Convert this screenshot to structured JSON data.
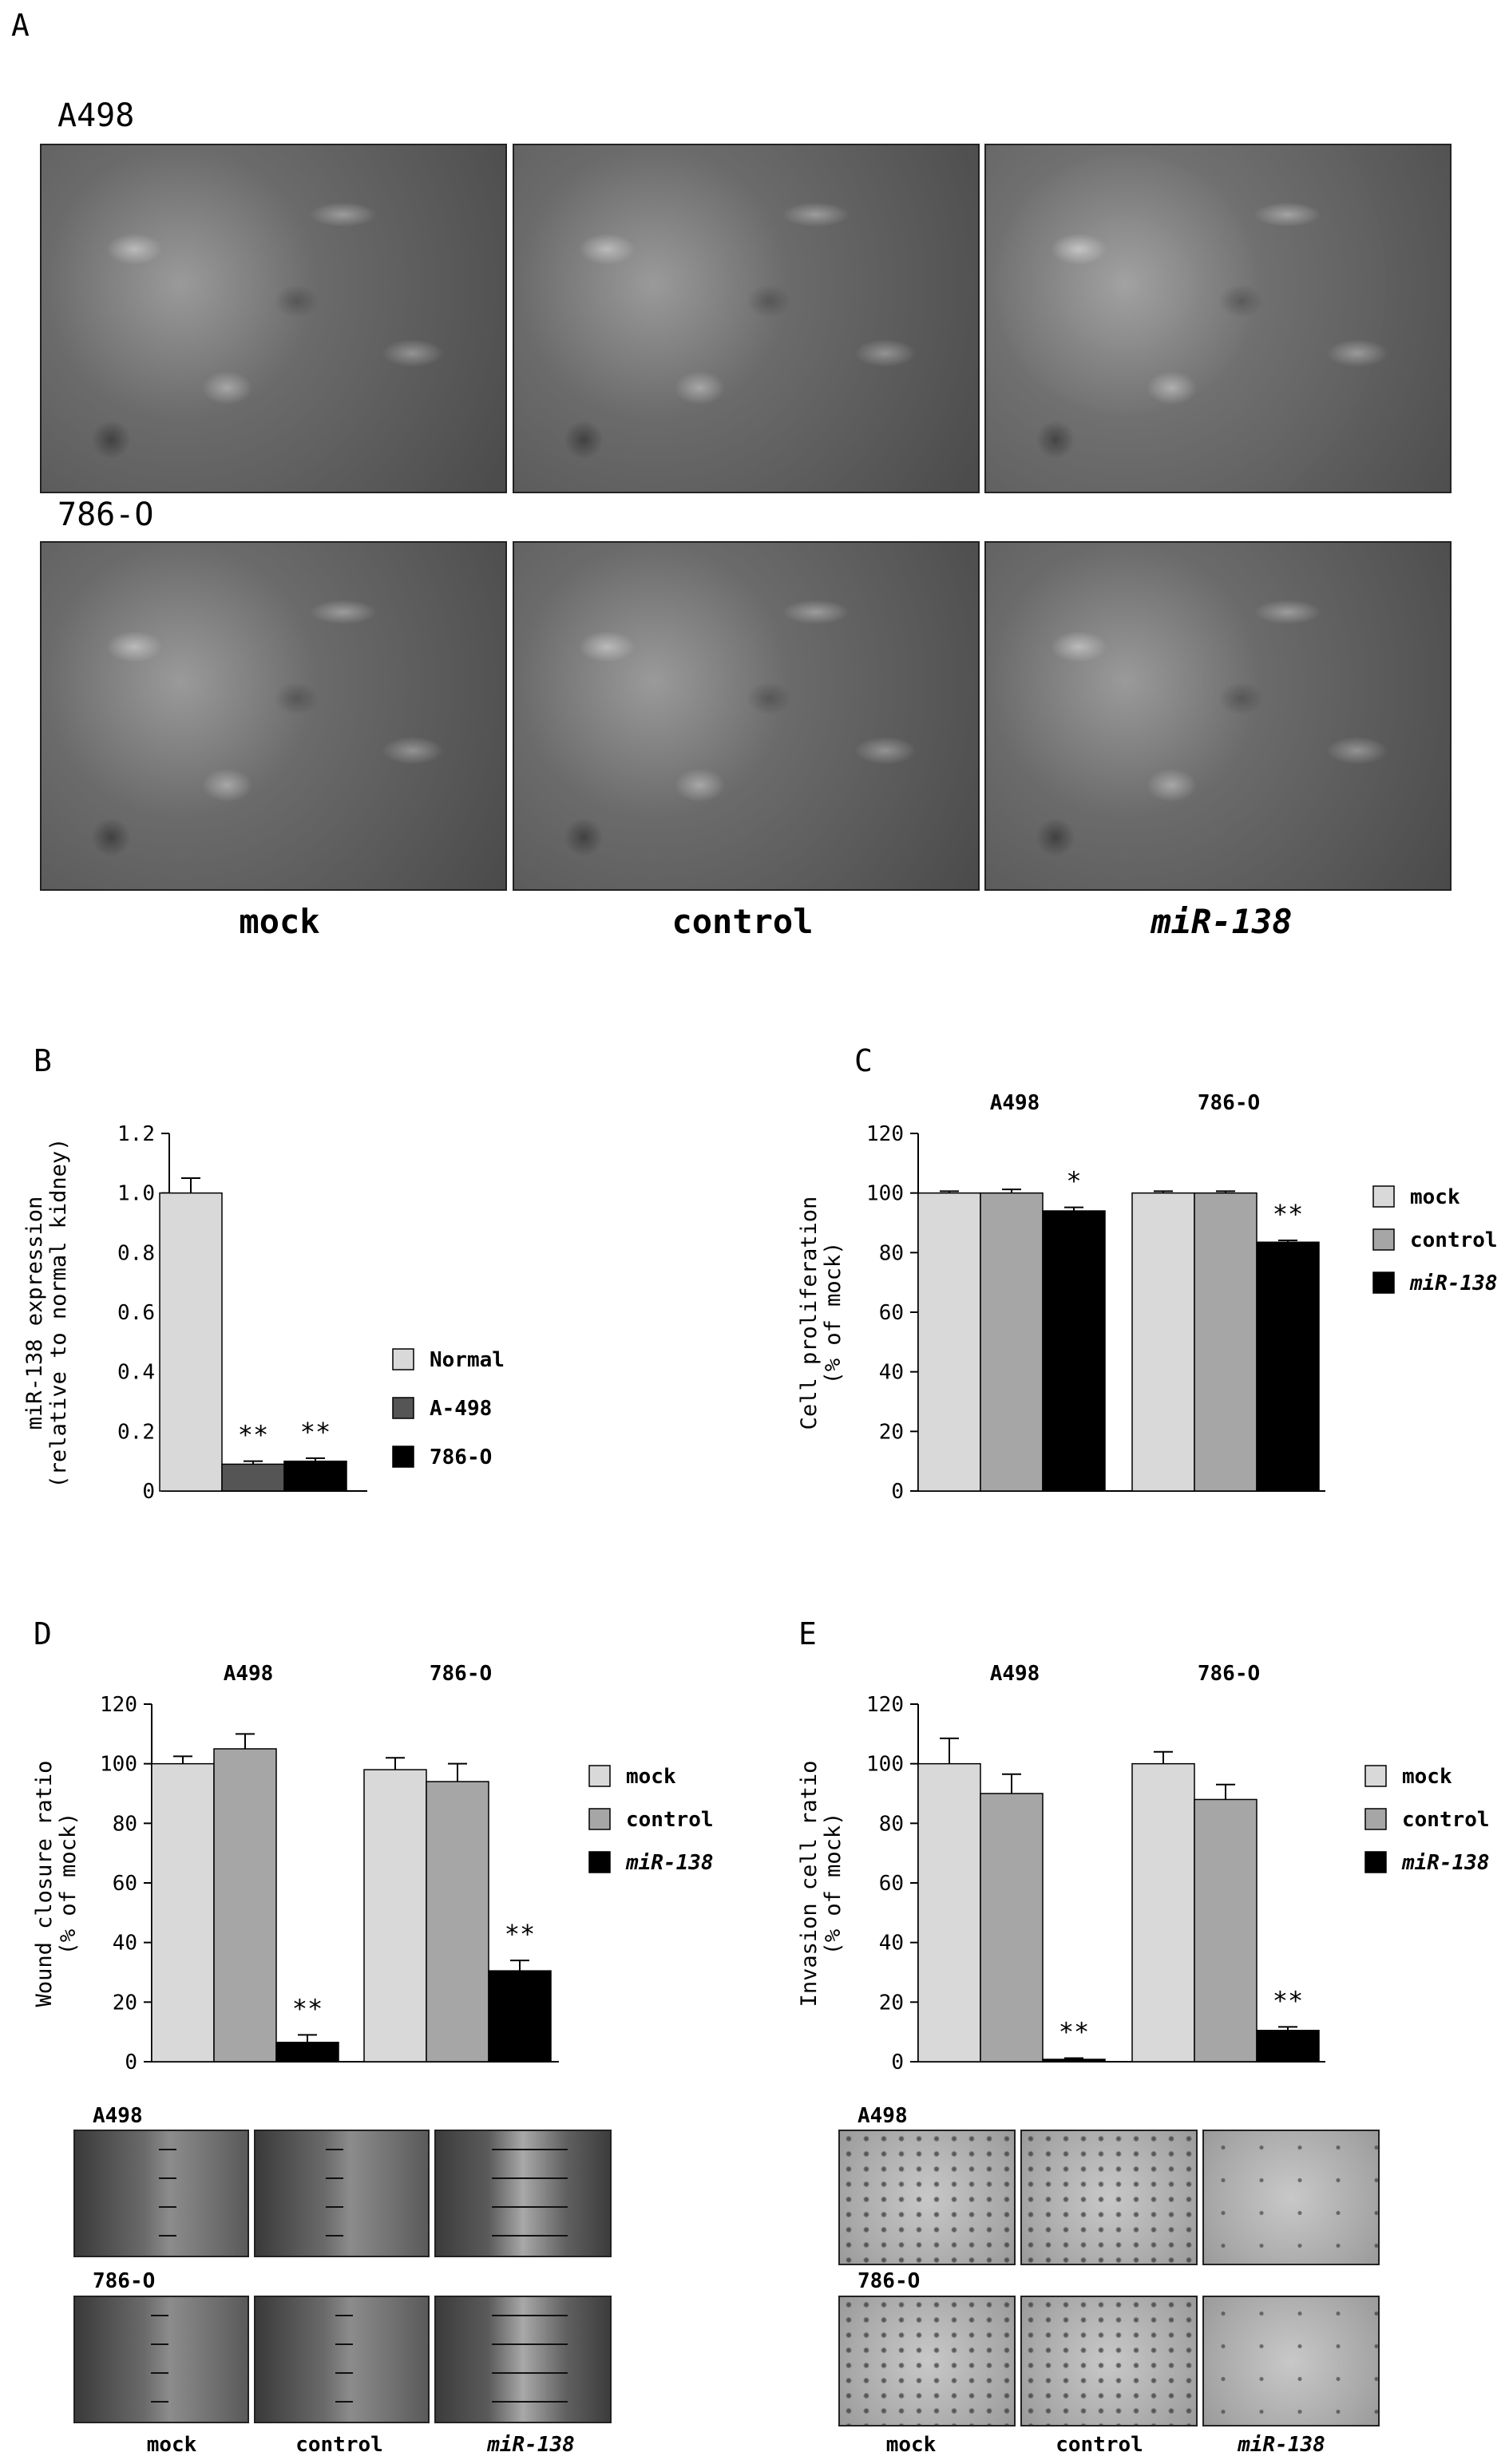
{
  "panel_a": {
    "letter": "A",
    "row_labels": [
      "A498",
      "786-O"
    ],
    "column_labels": [
      "mock",
      "control",
      "miR-138"
    ]
  },
  "panel_d_images": {
    "row_labels": [
      "A498",
      "786-O"
    ],
    "column_labels": [
      "mock",
      "control",
      "miR-138"
    ]
  },
  "panel_e_images": {
    "row_labels": [
      "A498",
      "786-O"
    ],
    "column_labels": [
      "mock",
      "control",
      "miR-138"
    ]
  },
  "colors": {
    "normal": "#d9d9d9",
    "a498_bar": "#555555",
    "black": "#000000",
    "mock": "#d9d9d9",
    "control": "#a6a6a6",
    "mir138": "#000000"
  },
  "chart_data": [
    {
      "panel": "B",
      "type": "bar",
      "ylabel": "miR-138 expression",
      "ylabel2": "(relative to normal kidney)",
      "ylim": [
        0,
        1.2
      ],
      "yticks": [
        "0",
        "0.2",
        "0.4",
        "0.6",
        "0.8",
        "1.0",
        "1.2"
      ],
      "categories": [
        "Normal",
        "A-498",
        "786-O"
      ],
      "values": [
        1.0,
        0.09,
        0.1
      ],
      "errors": [
        0.05,
        0.01,
        0.01
      ],
      "significance": [
        "",
        "**",
        "**"
      ],
      "legend": [
        "Normal",
        "A-498",
        "786-O"
      ],
      "legend_position": "right"
    },
    {
      "panel": "C",
      "type": "bar",
      "ylabel": "Cell proliferation",
      "ylabel2": "(% of mock)",
      "ylim": [
        0,
        120
      ],
      "yticks": [
        "0",
        "20",
        "40",
        "60",
        "80",
        "100",
        "120"
      ],
      "groups": [
        "A498",
        "786-O"
      ],
      "series": [
        {
          "name": "mock",
          "values": [
            100,
            100
          ],
          "errors": [
            0.6,
            0.6
          ]
        },
        {
          "name": "control",
          "values": [
            100,
            100
          ],
          "errors": [
            1.2,
            0.6
          ]
        },
        {
          "name": "miR-138",
          "values": [
            94,
            83.5
          ],
          "errors": [
            1.2,
            0.6
          ]
        }
      ],
      "significance": [
        [
          "",
          "",
          "*"
        ],
        [
          "",
          "",
          "**"
        ]
      ],
      "legend_position": "right"
    },
    {
      "panel": "D",
      "type": "bar",
      "ylabel": "Wound closure ratio",
      "ylabel2": "(% of mock)",
      "ylim": [
        0,
        120
      ],
      "yticks": [
        "0",
        "20",
        "40",
        "60",
        "80",
        "100",
        "120"
      ],
      "groups": [
        "A498",
        "786-O"
      ],
      "series": [
        {
          "name": "mock",
          "values": [
            100,
            98
          ],
          "errors": [
            2.5,
            4
          ]
        },
        {
          "name": "control",
          "values": [
            105,
            94
          ],
          "errors": [
            5,
            6
          ]
        },
        {
          "name": "miR-138",
          "values": [
            6.5,
            30.5
          ],
          "errors": [
            2.5,
            3.5
          ]
        }
      ],
      "significance": [
        [
          "",
          "",
          "**"
        ],
        [
          "",
          "",
          "**"
        ]
      ],
      "legend_position": "right"
    },
    {
      "panel": "E",
      "type": "bar",
      "ylabel": "Invasion cell ratio",
      "ylabel2": "(% of mock)",
      "ylim": [
        0,
        120
      ],
      "yticks": [
        "0",
        "20",
        "40",
        "60",
        "80",
        "100",
        "120"
      ],
      "groups": [
        "A498",
        "786-O"
      ],
      "series": [
        {
          "name": "mock",
          "values": [
            100,
            100
          ],
          "errors": [
            8.5,
            4
          ]
        },
        {
          "name": "control",
          "values": [
            90,
            88
          ],
          "errors": [
            6.5,
            5
          ]
        },
        {
          "name": "miR-138",
          "values": [
            0.8,
            10.5
          ],
          "errors": [
            0.4,
            1.2
          ]
        }
      ],
      "significance": [
        [
          "",
          "",
          "**"
        ],
        [
          "",
          "",
          "**"
        ]
      ],
      "legend_position": "right"
    }
  ]
}
